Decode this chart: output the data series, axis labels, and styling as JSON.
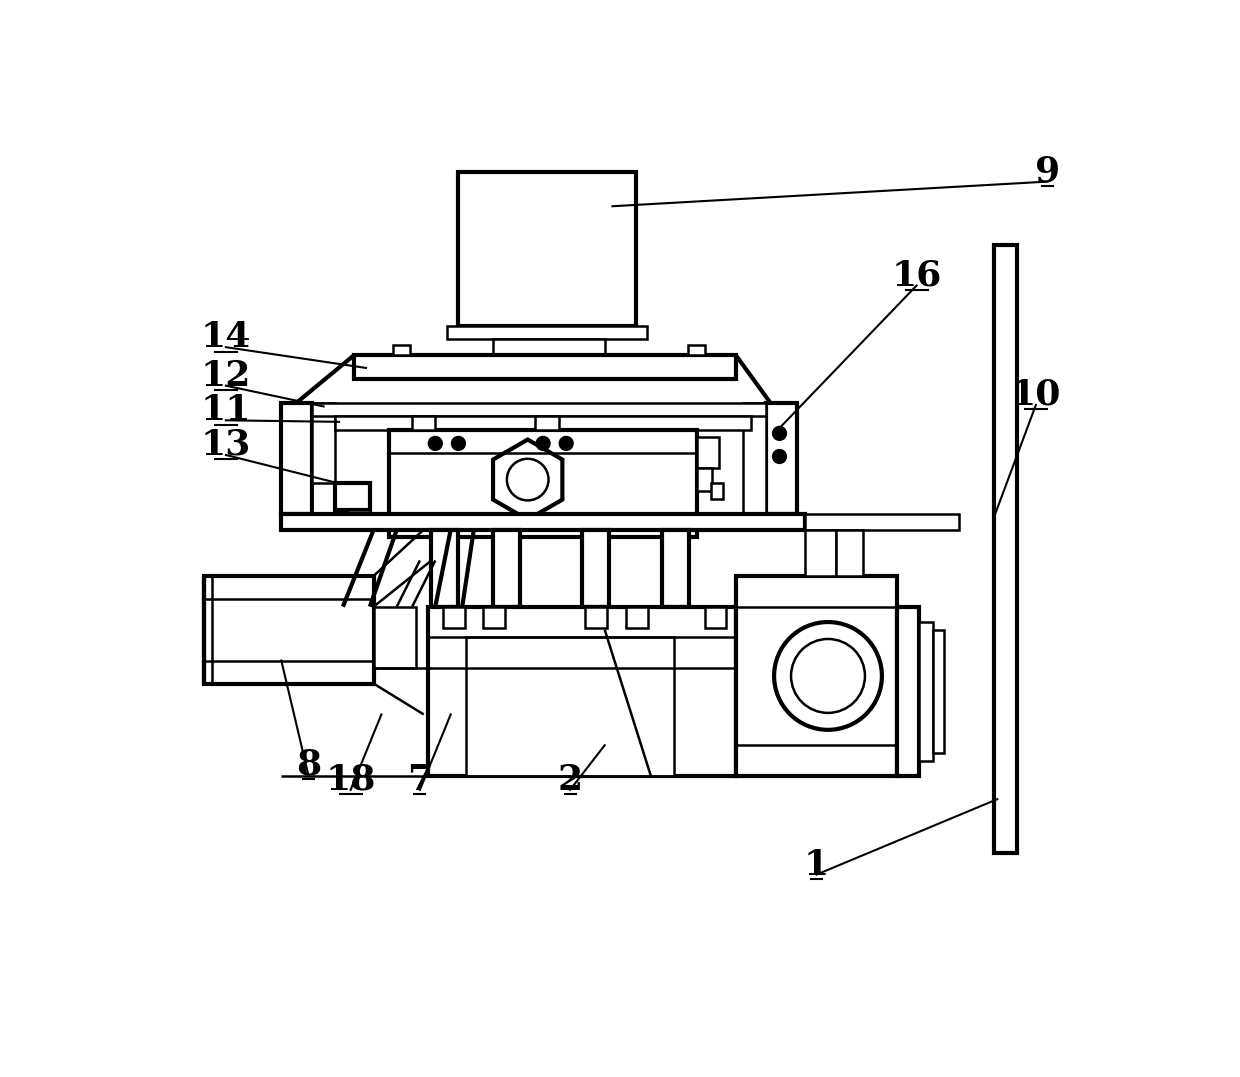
{
  "bg_color": "#ffffff",
  "line_color": "#000000",
  "lw": 1.8,
  "tlw": 3.0,
  "fig_width": 12.4,
  "fig_height": 10.77
}
